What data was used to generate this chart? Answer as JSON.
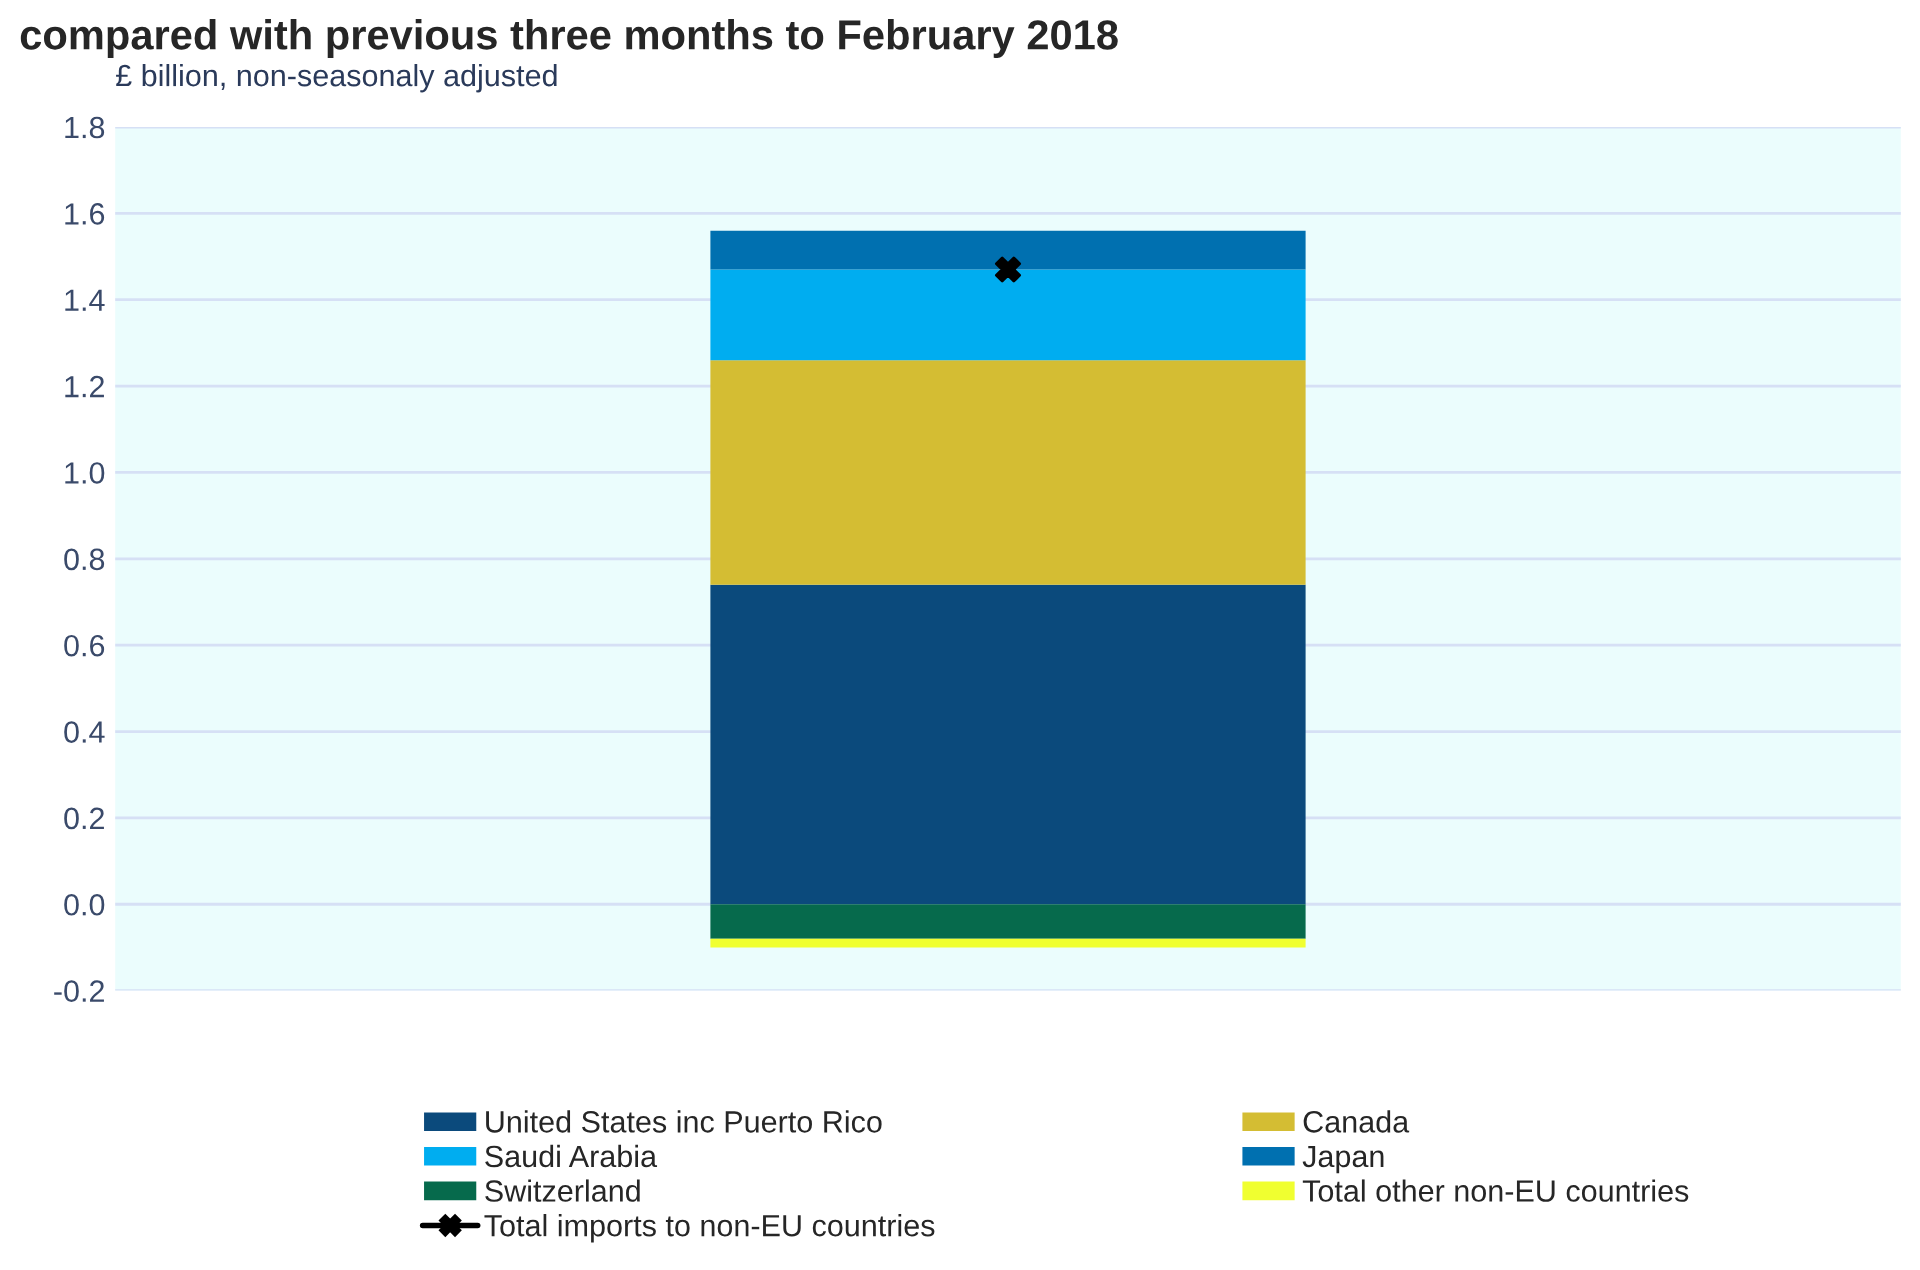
{
  "chart_data": {
    "type": "bar",
    "title": "compared with previous three months to February 2018",
    "ylabel": "£ billion, non-seasonaly adjusted",
    "categories": [
      null
    ],
    "stacked": true,
    "series": [
      {
        "name": "United States inc Puerto Rico",
        "color": "#0b4a7c",
        "values": [
          0.74
        ]
      },
      {
        "name": "Canada",
        "color": "#d4bd33",
        "values": [
          0.52
        ]
      },
      {
        "name": "Saudi Arabia",
        "color": "#00adf0",
        "values": [
          0.21
        ]
      },
      {
        "name": "Japan",
        "color": "#0070b0",
        "values": [
          0.09
        ]
      },
      {
        "name": "Switzerland",
        "color": "#066a4c",
        "values": [
          -0.08
        ]
      },
      {
        "name": "Total other non-EU countries",
        "color": "#f0ff30",
        "values": [
          -0.02
        ]
      },
      {
        "name": "Total imports to non-EU countries",
        "type": "scatter",
        "marker": "cross",
        "color": "#000000",
        "values": [
          1.47
        ]
      }
    ],
    "ylim": [
      -0.2,
      1.8
    ],
    "yticks": [
      -0.2,
      {
        "value": 0,
        "label": "0.0"
      },
      0.2,
      0.4,
      0.6,
      0.8,
      {
        "value": 1,
        "label": "1.0"
      },
      1.2,
      1.4,
      1.6,
      1.8
    ],
    "grid": "y",
    "legend": "bottom",
    "tick_labels": "y"
  }
}
